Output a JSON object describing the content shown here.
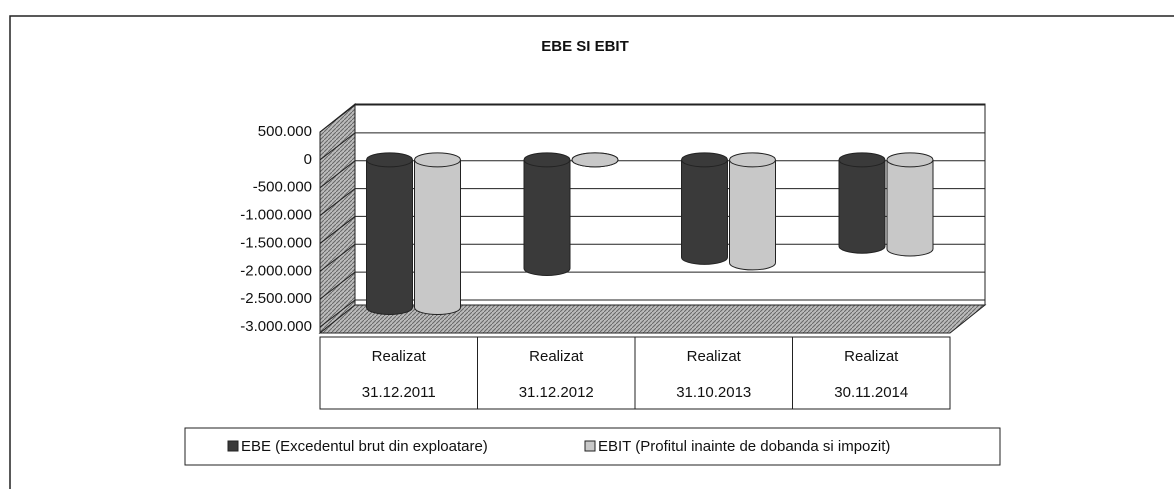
{
  "chart_data": {
    "type": "bar",
    "title": "EBE SI EBIT",
    "categories": [
      [
        "Realizat",
        "31.12.2011"
      ],
      [
        "Realizat",
        "31.12.2012"
      ],
      [
        "Realizat",
        "31.10.2013"
      ],
      [
        "Realizat",
        "30.11.2014"
      ]
    ],
    "series": [
      {
        "name": "EBE (Excedentul brut din exploatare)",
        "color": "#3a3a3a",
        "values": [
          -2650000,
          -1950000,
          -1750000,
          -1550000
        ]
      },
      {
        "name": "EBIT (Profitul inainte de dobanda si impozit)",
        "color": "#c8c8c8",
        "values": [
          -2650000,
          0,
          -1850000,
          -1600000
        ]
      }
    ],
    "ylim": [
      -3000000,
      500000
    ],
    "yticks": [
      {
        "value": 500000,
        "label": "500.000"
      },
      0,
      {
        "value": -500000,
        "label": "-500.000"
      },
      {
        "value": -1000000,
        "label": "-1.000.000"
      },
      {
        "value": -1500000,
        "label": "-1.500.000"
      },
      {
        "value": -2000000,
        "label": "-2.000.000"
      },
      {
        "value": -2500000,
        "label": "-2.500.000"
      },
      {
        "value": -3000000,
        "label": "-3.000.000"
      }
    ],
    "grid": true,
    "legend": "bottom"
  }
}
